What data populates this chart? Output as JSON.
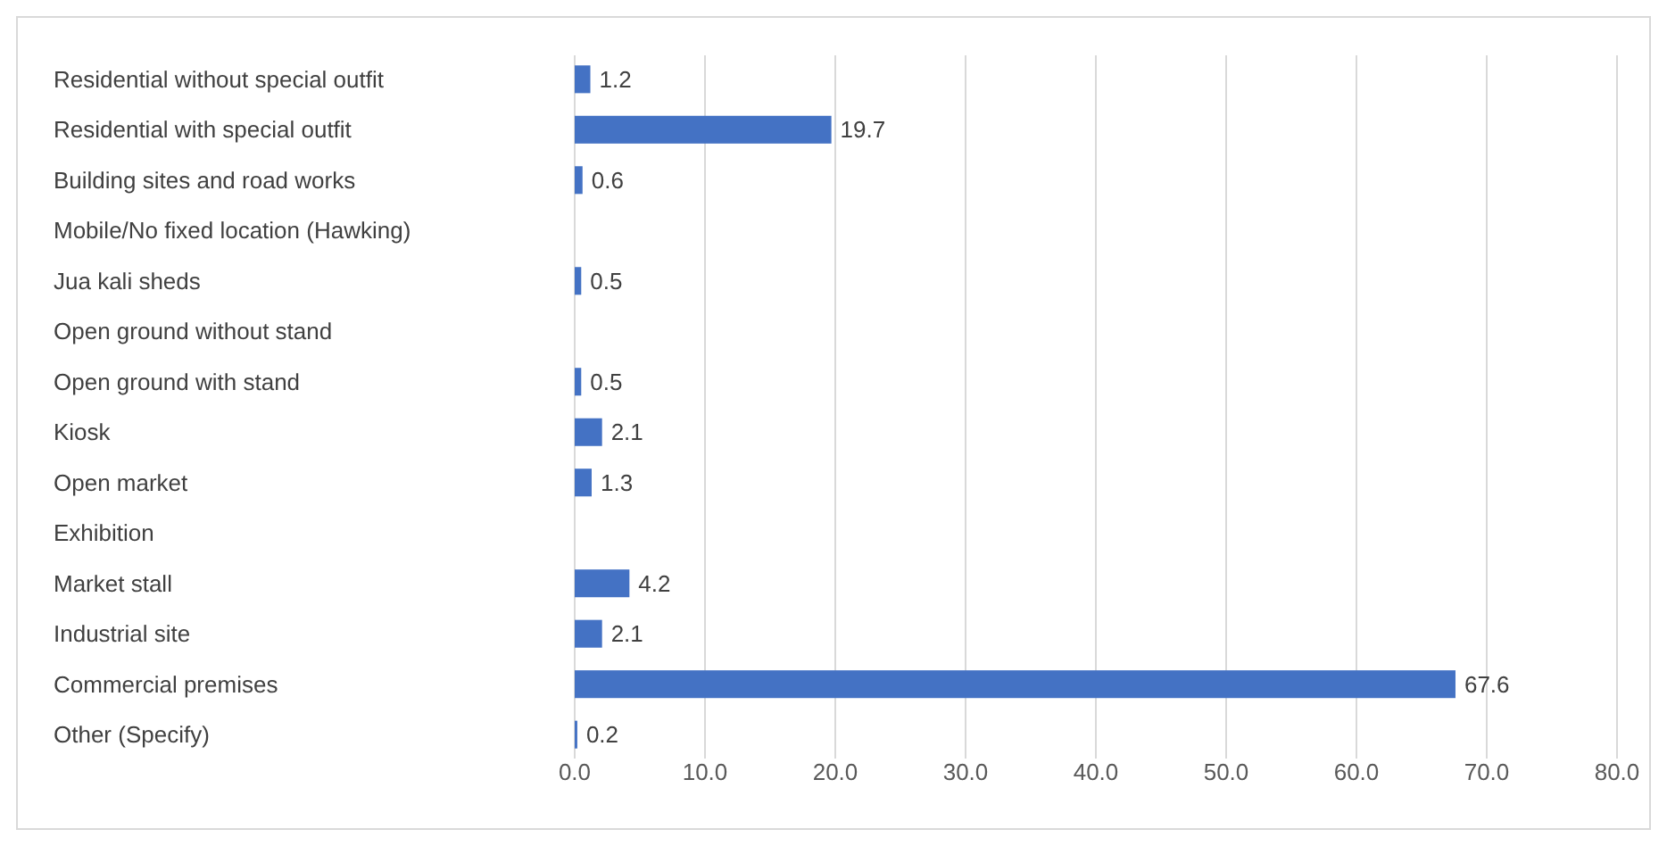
{
  "chart_data": {
    "type": "bar",
    "orientation": "horizontal",
    "categories": [
      "Residential without special outfit",
      "Residential with special outfit",
      "Building sites and road works",
      "Mobile/No fixed location (Hawking)",
      "Jua kali sheds",
      "Open ground without stand",
      "Open ground with stand",
      "Kiosk",
      "Open market",
      "Exhibition",
      "Market stall",
      "Industrial site",
      "Commercial premises",
      "Other (Specify)"
    ],
    "values": [
      1.2,
      19.7,
      0.6,
      0,
      0.5,
      0,
      0.5,
      2.1,
      1.3,
      0,
      4.2,
      2.1,
      67.6,
      0.2
    ],
    "value_labels": [
      "1.2",
      "19.7",
      "0.6",
      null,
      "0.5",
      null,
      "0.5",
      "2.1",
      "1.3",
      null,
      "4.2",
      "2.1",
      "67.6",
      "0.2"
    ],
    "color": "#4472c4",
    "xlim": [
      0,
      80
    ],
    "xticks": [
      {
        "value": 0,
        "label": "0.0"
      },
      {
        "value": 10,
        "label": "10.0"
      },
      {
        "value": 20,
        "label": "20.0"
      },
      {
        "value": 30,
        "label": "30.0"
      },
      {
        "value": 40,
        "label": "40.0"
      },
      {
        "value": 50,
        "label": "50.0"
      },
      {
        "value": 60,
        "label": "60.0"
      },
      {
        "value": 70,
        "label": "70.0"
      },
      {
        "value": 80,
        "label": "80.0"
      }
    ],
    "grid": "x"
  }
}
